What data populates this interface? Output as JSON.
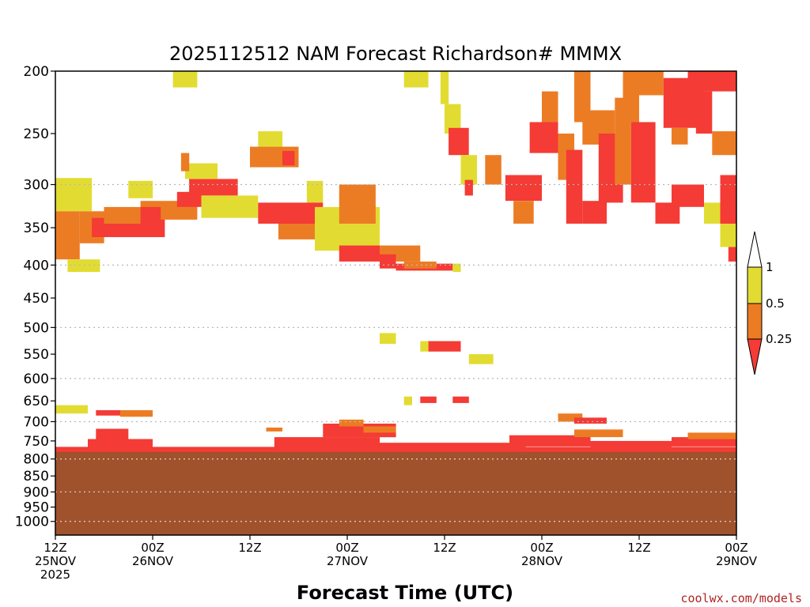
{
  "chart_data": {
    "type": "heatmap",
    "title": "2025112512 NAM Forecast Richardson# MMMX",
    "xlabel": "Forecast Time (UTC)",
    "ylabel": "",
    "credit": "coolwx.com/models",
    "x_range_hours": [
      0,
      84
    ],
    "x_ticks": [
      {
        "hour": 0,
        "lines": [
          "12Z",
          "25NOV",
          "2025"
        ]
      },
      {
        "hour": 12,
        "lines": [
          "00Z",
          "26NOV"
        ]
      },
      {
        "hour": 24,
        "lines": [
          "12Z"
        ]
      },
      {
        "hour": 36,
        "lines": [
          "00Z",
          "27NOV"
        ]
      },
      {
        "hour": 48,
        "lines": [
          "12Z"
        ]
      },
      {
        "hour": 60,
        "lines": [
          "00Z",
          "28NOV"
        ]
      },
      {
        "hour": 72,
        "lines": [
          "12Z"
        ]
      },
      {
        "hour": 84,
        "lines": [
          "00Z",
          "29NOV"
        ]
      }
    ],
    "y_axis": "pressure (log, inverted)",
    "y_range": [
      200,
      1050
    ],
    "y_ticks": [
      200,
      250,
      300,
      350,
      400,
      450,
      500,
      550,
      600,
      650,
      700,
      750,
      800,
      850,
      900,
      950,
      1000
    ],
    "y_gridlines": [
      300,
      400,
      500,
      600,
      700,
      800,
      900,
      1000
    ],
    "colorbar": {
      "levels": [
        0.25,
        0.5,
        1
      ],
      "tick_labels": [
        "0.25",
        "0.5",
        "1"
      ],
      "colors": {
        "below_0.25": "#f43b35",
        "0.25_0.5": "#ec7c24",
        "0.5_1": "#e2dc32",
        "above_1": "#ffffff"
      }
    },
    "ground": {
      "color": "#a0522d",
      "top_pressure": 780
    },
    "colors": {
      "red": "#f43b35",
      "orange": "#ec7c24",
      "yellow": "#e2dc32"
    },
    "cells": [
      {
        "t0": 0,
        "t1": 4.5,
        "p0": 293,
        "p1": 330,
        "c": "yellow"
      },
      {
        "t0": 0,
        "t1": 3,
        "p0": 330,
        "p1": 392,
        "c": "orange"
      },
      {
        "t0": 3,
        "t1": 6,
        "p0": 330,
        "p1": 370,
        "c": "orange"
      },
      {
        "t0": 4.5,
        "t1": 13.5,
        "p0": 338,
        "p1": 362,
        "c": "red"
      },
      {
        "t0": 6,
        "t1": 10.5,
        "p0": 325,
        "p1": 345,
        "c": "orange"
      },
      {
        "t0": 1.5,
        "t1": 5.5,
        "p0": 392,
        "p1": 410,
        "c": "yellow"
      },
      {
        "t0": 10.5,
        "t1": 17.5,
        "p0": 318,
        "p1": 340,
        "c": "orange"
      },
      {
        "t0": 10.5,
        "t1": 13,
        "p0": 325,
        "p1": 342,
        "c": "red"
      },
      {
        "t0": 15,
        "t1": 18,
        "p0": 308,
        "p1": 325,
        "c": "red"
      },
      {
        "t0": 16.5,
        "t1": 22.5,
        "p0": 294,
        "p1": 312,
        "c": "red"
      },
      {
        "t0": 9,
        "t1": 12,
        "p0": 296,
        "p1": 315,
        "c": "yellow"
      },
      {
        "t0": 16,
        "t1": 20,
        "p0": 278,
        "p1": 294,
        "c": "yellow"
      },
      {
        "t0": 15.5,
        "t1": 16.5,
        "p0": 268,
        "p1": 286,
        "c": "orange"
      },
      {
        "t0": 18,
        "t1": 25,
        "p0": 312,
        "p1": 338,
        "c": "yellow"
      },
      {
        "t0": 24,
        "t1": 30,
        "p0": 262,
        "p1": 282,
        "c": "orange"
      },
      {
        "t0": 28,
        "t1": 29.5,
        "p0": 266,
        "p1": 280,
        "c": "red"
      },
      {
        "t0": 25,
        "t1": 28,
        "p0": 248,
        "p1": 262,
        "c": "yellow"
      },
      {
        "t0": 31,
        "t1": 33,
        "p0": 296,
        "p1": 320,
        "c": "yellow"
      },
      {
        "t0": 25,
        "t1": 33,
        "p0": 320,
        "p1": 345,
        "c": "red"
      },
      {
        "t0": 27.5,
        "t1": 32,
        "p0": 345,
        "p1": 365,
        "c": "orange"
      },
      {
        "t0": 32,
        "t1": 40,
        "p0": 325,
        "p1": 380,
        "c": "yellow"
      },
      {
        "t0": 35,
        "t1": 39.5,
        "p0": 300,
        "p1": 345,
        "c": "orange"
      },
      {
        "t0": 35,
        "t1": 40,
        "p0": 373,
        "p1": 395,
        "c": "red"
      },
      {
        "t0": 40,
        "t1": 45,
        "p0": 373,
        "p1": 395,
        "c": "orange"
      },
      {
        "t0": 40,
        "t1": 42,
        "p0": 385,
        "p1": 405,
        "c": "red"
      },
      {
        "t0": 42,
        "t1": 49,
        "p0": 398,
        "p1": 408,
        "c": "red"
      },
      {
        "t0": 43,
        "t1": 47,
        "p0": 395,
        "p1": 405,
        "c": "orange"
      },
      {
        "t0": 49,
        "t1": 50,
        "p0": 398,
        "p1": 410,
        "c": "yellow"
      },
      {
        "t0": 14.5,
        "t1": 17.5,
        "p0": 200,
        "p1": 212,
        "c": "yellow"
      },
      {
        "t0": 43,
        "t1": 46,
        "p0": 200,
        "p1": 212,
        "c": "yellow"
      },
      {
        "t0": 47.5,
        "t1": 48.5,
        "p0": 200,
        "p1": 225,
        "c": "yellow"
      },
      {
        "t0": 48,
        "t1": 50,
        "p0": 225,
        "p1": 250,
        "c": "yellow"
      },
      {
        "t0": 48.5,
        "t1": 51,
        "p0": 245,
        "p1": 270,
        "c": "red"
      },
      {
        "t0": 50,
        "t1": 52,
        "p0": 270,
        "p1": 300,
        "c": "yellow"
      },
      {
        "t0": 50.5,
        "t1": 51.5,
        "p0": 295,
        "p1": 312,
        "c": "red"
      },
      {
        "t0": 53,
        "t1": 55,
        "p0": 270,
        "p1": 300,
        "c": "orange"
      },
      {
        "t0": 55.5,
        "t1": 60,
        "p0": 290,
        "p1": 318,
        "c": "red"
      },
      {
        "t0": 56.5,
        "t1": 59,
        "p0": 318,
        "p1": 345,
        "c": "orange"
      },
      {
        "t0": 58.5,
        "t1": 62,
        "p0": 240,
        "p1": 268,
        "c": "red"
      },
      {
        "t0": 60,
        "t1": 62,
        "p0": 215,
        "p1": 240,
        "c": "orange"
      },
      {
        "t0": 62,
        "t1": 64,
        "p0": 250,
        "p1": 295,
        "c": "orange"
      },
      {
        "t0": 63,
        "t1": 65,
        "p0": 265,
        "p1": 345,
        "c": "red"
      },
      {
        "t0": 65,
        "t1": 68,
        "p0": 318,
        "p1": 345,
        "c": "red"
      },
      {
        "t0": 64,
        "t1": 66,
        "p0": 200,
        "p1": 240,
        "c": "orange"
      },
      {
        "t0": 65,
        "t1": 69,
        "p0": 230,
        "p1": 260,
        "c": "orange"
      },
      {
        "t0": 67,
        "t1": 70,
        "p0": 250,
        "p1": 320,
        "c": "red"
      },
      {
        "t0": 69,
        "t1": 71,
        "p0": 220,
        "p1": 300,
        "c": "orange"
      },
      {
        "t0": 70,
        "t1": 72,
        "p0": 200,
        "p1": 240,
        "c": "orange"
      },
      {
        "t0": 71,
        "t1": 74,
        "p0": 240,
        "p1": 320,
        "c": "red"
      },
      {
        "t0": 72,
        "t1": 75,
        "p0": 200,
        "p1": 218,
        "c": "orange"
      },
      {
        "t0": 74,
        "t1": 77,
        "p0": 320,
        "p1": 345,
        "c": "red"
      },
      {
        "t0": 75,
        "t1": 80,
        "p0": 205,
        "p1": 245,
        "c": "red"
      },
      {
        "t0": 76,
        "t1": 78,
        "p0": 245,
        "p1": 260,
        "c": "orange"
      },
      {
        "t0": 78,
        "t1": 84,
        "p0": 200,
        "p1": 215,
        "c": "red"
      },
      {
        "t0": 79,
        "t1": 81,
        "p0": 215,
        "p1": 250,
        "c": "red"
      },
      {
        "t0": 81,
        "t1": 84,
        "p0": 248,
        "p1": 270,
        "c": "orange"
      },
      {
        "t0": 76,
        "t1": 80,
        "p0": 300,
        "p1": 325,
        "c": "red"
      },
      {
        "t0": 80,
        "t1": 82,
        "p0": 320,
        "p1": 345,
        "c": "yellow"
      },
      {
        "t0": 82,
        "t1": 84,
        "p0": 290,
        "p1": 345,
        "c": "red"
      },
      {
        "t0": 82,
        "t1": 84,
        "p0": 345,
        "p1": 375,
        "c": "yellow"
      },
      {
        "t0": 83,
        "t1": 84,
        "p0": 375,
        "p1": 395,
        "c": "red"
      },
      {
        "t0": 40,
        "t1": 42,
        "p0": 510,
        "p1": 530,
        "c": "yellow"
      },
      {
        "t0": 46,
        "t1": 50,
        "p0": 525,
        "p1": 545,
        "c": "red"
      },
      {
        "t0": 45,
        "t1": 46,
        "p0": 525,
        "p1": 545,
        "c": "yellow"
      },
      {
        "t0": 51,
        "t1": 54,
        "p0": 550,
        "p1": 570,
        "c": "yellow"
      },
      {
        "t0": 43,
        "t1": 44,
        "p0": 640,
        "p1": 660,
        "c": "yellow"
      },
      {
        "t0": 45,
        "t1": 47,
        "p0": 640,
        "p1": 655,
        "c": "red"
      },
      {
        "t0": 49,
        "t1": 51,
        "p0": 640,
        "p1": 655,
        "c": "red"
      },
      {
        "t0": 0,
        "t1": 4,
        "p0": 660,
        "p1": 680,
        "c": "yellow"
      },
      {
        "t0": 5,
        "t1": 8,
        "p0": 672,
        "p1": 685,
        "c": "red"
      },
      {
        "t0": 8,
        "t1": 12,
        "p0": 672,
        "p1": 688,
        "c": "orange"
      },
      {
        "t0": 62,
        "t1": 65,
        "p0": 680,
        "p1": 700,
        "c": "orange"
      },
      {
        "t0": 64,
        "t1": 68,
        "p0": 690,
        "p1": 705,
        "c": "red"
      },
      {
        "t0": 5,
        "t1": 9,
        "p0": 718,
        "p1": 750,
        "c": "red"
      },
      {
        "t0": 4,
        "t1": 12,
        "p0": 745,
        "p1": 770,
        "c": "red"
      },
      {
        "t0": 26,
        "t1": 28,
        "p0": 715,
        "p1": 725,
        "c": "orange"
      },
      {
        "t0": 27,
        "t1": 40,
        "p0": 740,
        "p1": 768,
        "c": "red"
      },
      {
        "t0": 33,
        "t1": 42,
        "p0": 705,
        "p1": 740,
        "c": "red"
      },
      {
        "t0": 35,
        "t1": 38,
        "p0": 695,
        "p1": 712,
        "c": "orange"
      },
      {
        "t0": 38,
        "t1": 42,
        "p0": 712,
        "p1": 728,
        "c": "orange"
      },
      {
        "t0": 40,
        "t1": 58,
        "p0": 755,
        "p1": 772,
        "c": "red"
      },
      {
        "t0": 56,
        "t1": 66,
        "p0": 735,
        "p1": 765,
        "c": "red"
      },
      {
        "t0": 64,
        "t1": 70,
        "p0": 720,
        "p1": 740,
        "c": "orange"
      },
      {
        "t0": 66,
        "t1": 76,
        "p0": 750,
        "p1": 770,
        "c": "red"
      },
      {
        "t0": 76,
        "t1": 84,
        "p0": 740,
        "p1": 765,
        "c": "red"
      },
      {
        "t0": 78,
        "t1": 84,
        "p0": 728,
        "p1": 745,
        "c": "orange"
      },
      {
        "t0": 0,
        "t1": 84,
        "p0": 766,
        "p1": 782,
        "c": "red"
      }
    ]
  }
}
